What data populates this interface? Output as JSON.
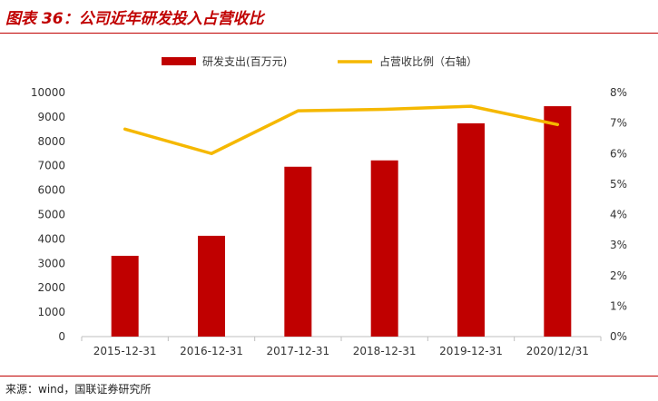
{
  "figure": {
    "title": "图表 36：公司近年研发投入占营收比",
    "source": "来源：wind，国联证券研究所"
  },
  "colors": {
    "bar": "#c00000",
    "line": "#f5b800",
    "accent": "#c00000",
    "axis": "#bfbfbf"
  },
  "chart_data": {
    "type": "bar",
    "categories": [
      "2015-12-31",
      "2016-12-31",
      "2017-12-31",
      "2018-12-31",
      "2019-12-31",
      "2020/12/31"
    ],
    "series": [
      {
        "name": "研发支出(百万元)",
        "type": "bar",
        "axis": "left",
        "values": [
          3310,
          4130,
          6960,
          7220,
          8740,
          9440
        ]
      },
      {
        "name": "占营收比例（右轴）",
        "type": "line",
        "axis": "right",
        "values": [
          6.8,
          6.0,
          7.4,
          7.45,
          7.55,
          6.95
        ]
      }
    ],
    "y_left": {
      "min": 0,
      "max": 10000,
      "ticks": [
        "0",
        "1000",
        "2000",
        "3000",
        "4000",
        "5000",
        "6000",
        "7000",
        "8000",
        "9000",
        "10000"
      ]
    },
    "y_right": {
      "min": 0,
      "max": 8,
      "ticks": [
        "0%",
        "1%",
        "2%",
        "3%",
        "4%",
        "5%",
        "6%",
        "7%",
        "8%"
      ]
    },
    "legend_position": "top-center",
    "grid": false
  }
}
